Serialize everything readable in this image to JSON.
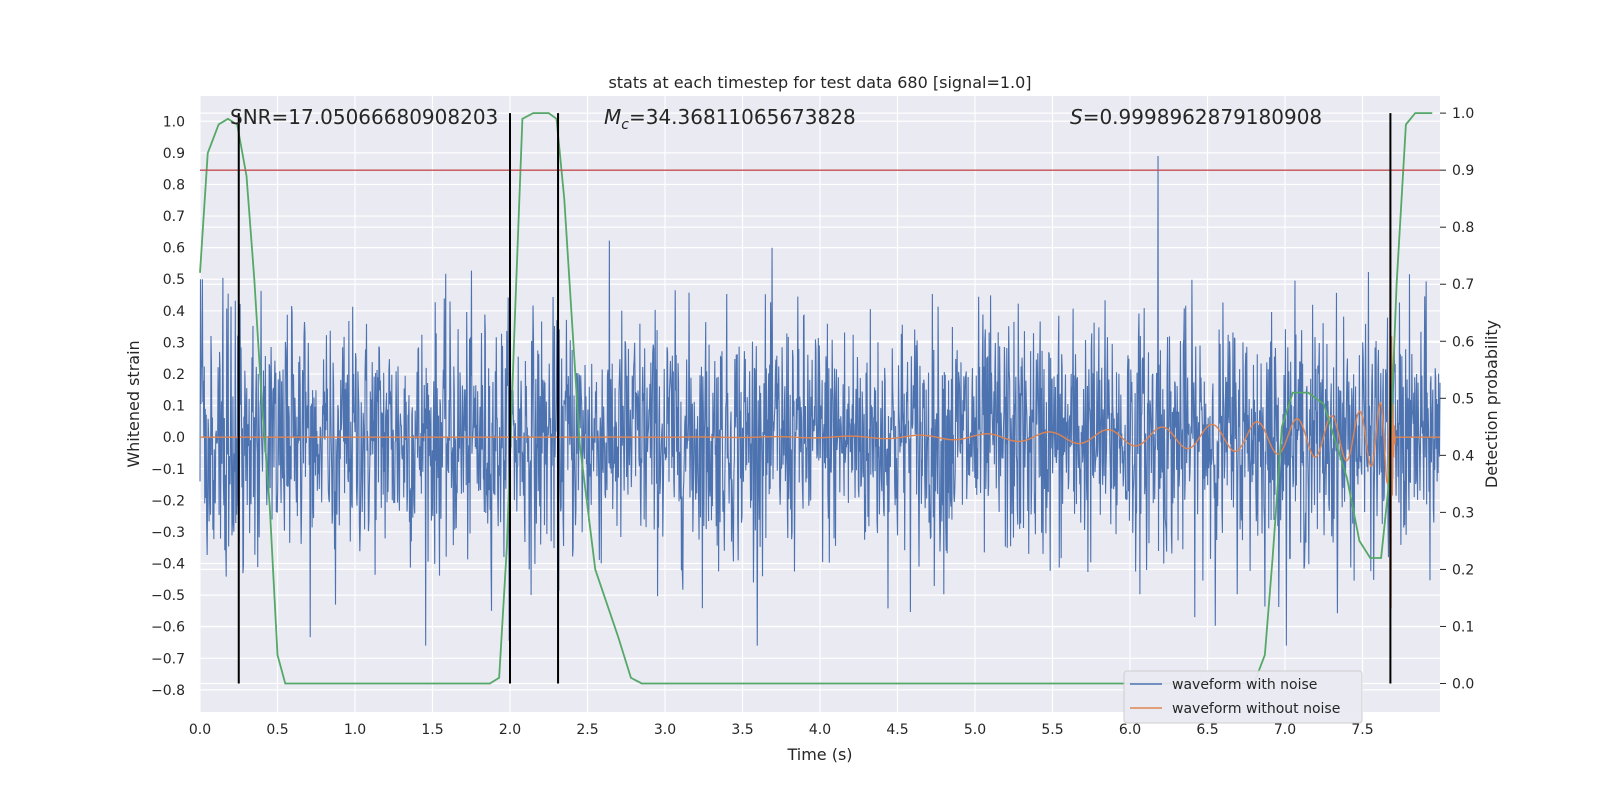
{
  "chart_data": {
    "type": "line",
    "title": "stats at each timestep for test data 680 [signal=1.0]",
    "xlabel": "Time (s)",
    "ylabel": "Whitened strain",
    "ylabel_right": "Detection probability",
    "xlim": [
      0,
      8
    ],
    "ylim": [
      -0.87,
      1.08
    ],
    "ylim_right": [
      -0.05,
      1.03
    ],
    "x_ticks": [
      0.0,
      0.5,
      1.0,
      1.5,
      2.0,
      2.5,
      3.0,
      3.5,
      4.0,
      4.5,
      5.0,
      5.5,
      6.0,
      6.5,
      7.0,
      7.5
    ],
    "x_tick_labels": [
      "0.0",
      "0.5",
      "1.0",
      "1.5",
      "2.0",
      "2.5",
      "3.0",
      "3.5",
      "4.0",
      "4.5",
      "5.0",
      "5.5",
      "6.0",
      "6.5",
      "7.0",
      "7.5"
    ],
    "y_ticks": [
      1.0,
      0.9,
      0.8,
      0.7,
      0.6,
      0.5,
      0.4,
      0.3,
      0.2,
      0.1,
      0.0,
      -0.1,
      -0.2,
      -0.3,
      -0.4,
      -0.5,
      -0.6,
      -0.7,
      -0.8
    ],
    "y_tick_labels": [
      "1.0",
      "0.9",
      "0.8",
      "0.7",
      "0.6",
      "0.5",
      "0.4",
      "0.3",
      "0.2",
      "0.1",
      "0.0",
      "−0.1",
      "−0.2",
      "−0.3",
      "−0.4",
      "−0.5",
      "−0.6",
      "−0.7",
      "−0.8"
    ],
    "y_right_ticks": [
      1.0,
      0.9,
      0.8,
      0.7,
      0.6,
      0.5,
      0.4,
      0.3,
      0.2,
      0.1,
      0.0
    ],
    "y_right_tick_labels": [
      "1.0",
      "0.9",
      "0.8",
      "0.7",
      "0.6",
      "0.5",
      "0.4",
      "0.3",
      "0.2",
      "0.1",
      "0.0"
    ],
    "annotations": {
      "snr": "SNR=17.05066680908203",
      "mc_symbol": "M",
      "mc_sub": "c",
      "mc_value": "=34.36811065673828",
      "s_symbol": "S",
      "s_value": "=0.9998962879180908"
    },
    "series": [
      {
        "name": "waveform with noise",
        "color": "#4c72b0",
        "axis": "left",
        "description": "dense noise, approx amplitude range -0.68 to 0.89",
        "envelope_typical": [
          -0.45,
          0.45
        ]
      },
      {
        "name": "waveform without noise",
        "color": "#dd8452",
        "axis": "left",
        "description": "inspiral chirp, amplitude grows from 0 near t=4.2 to about 0.9 at merger t=7.68",
        "merger_time": 7.68
      },
      {
        "color": "#55a868",
        "axis": "right",
        "x": [
          0.0,
          0.05,
          0.12,
          0.18,
          0.24,
          0.3,
          0.35,
          0.4,
          0.45,
          0.5,
          0.55,
          1.0,
          1.5,
          1.87,
          1.93,
          1.98,
          2.03,
          2.08,
          2.15,
          2.25,
          2.3,
          2.35,
          2.45,
          2.55,
          2.7,
          2.78,
          2.85,
          2.9,
          3.5,
          4.5,
          5.0,
          5.3,
          5.8,
          6.3,
          6.8,
          6.87,
          6.92,
          6.98,
          7.05,
          7.15,
          7.25,
          7.4,
          7.48,
          7.55,
          7.62,
          7.67,
          7.72,
          7.78,
          7.84,
          7.9,
          7.95
        ],
        "values": [
          0.72,
          0.93,
          0.98,
          0.99,
          0.98,
          0.89,
          0.71,
          0.49,
          0.31,
          0.05,
          0.0,
          0.0,
          0.0,
          0.0,
          0.01,
          0.24,
          0.63,
          0.99,
          1.0,
          1.0,
          0.99,
          0.85,
          0.42,
          0.2,
          0.08,
          0.01,
          0.0,
          0.0,
          0.0,
          0.0,
          0.0,
          0.0,
          0.0,
          0.0,
          0.0,
          0.05,
          0.22,
          0.45,
          0.51,
          0.51,
          0.49,
          0.36,
          0.25,
          0.22,
          0.22,
          0.35,
          0.7,
          0.98,
          1.0,
          1.0,
          1.0
        ]
      }
    ],
    "threshold_line": {
      "value_right": 0.9,
      "color": "#c44e52"
    },
    "vertical_markers": [
      0.25,
      2.0,
      2.31,
      7.68
    ],
    "marker_color": "#000000",
    "legend_position": "lower-right",
    "grid": true,
    "background": "#eaeaf2"
  }
}
